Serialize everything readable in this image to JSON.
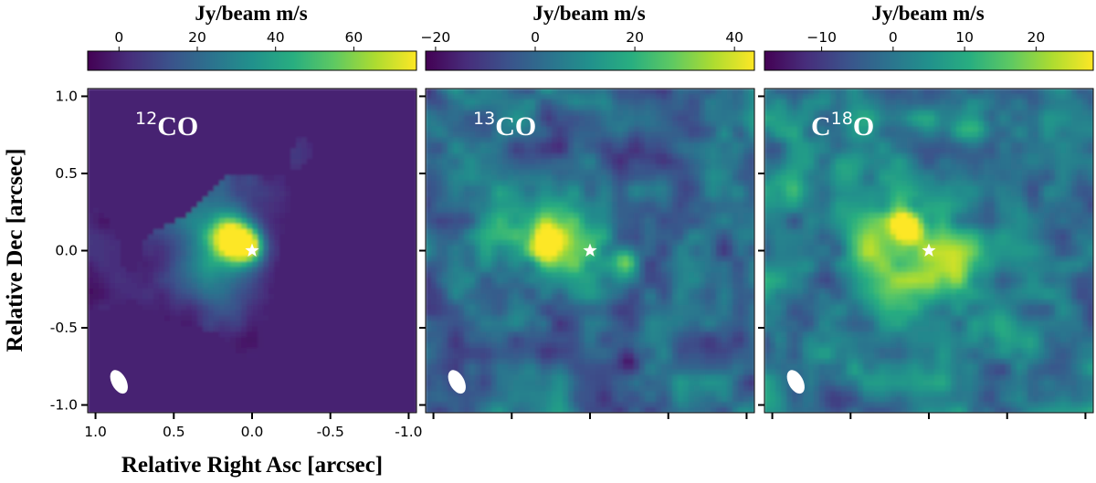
{
  "chart_data": [
    {
      "type": "heatmap",
      "label": "12CO",
      "label_parts": {
        "sup": "12",
        "base": "CO",
        "sup_position": "before"
      },
      "colorbar": {
        "title": "Jy/beam m/s",
        "ticks": [
          0,
          20,
          40,
          60
        ],
        "range": [
          -8,
          76
        ],
        "colormap": "viridis",
        "placement": "top"
      },
      "xlabel": "Relative Right Asc [arcsec]",
      "ylabel": "Relative Dec [arcsec]",
      "xlim": [
        1.05,
        -1.05
      ],
      "ylim": [
        -1.05,
        1.05
      ],
      "xticks": [
        "1.0",
        "0.5",
        "0.0",
        "-0.5",
        "-1.0"
      ],
      "yticks": [
        "1.0",
        "0.5",
        "0.0",
        "-0.5",
        "-1.0"
      ],
      "star_marker": {
        "x": 0.0,
        "y": 0.0
      },
      "beam": {
        "x": 0.85,
        "y": -0.85
      },
      "background_value": 0,
      "features": [
        {
          "x": 0.12,
          "y": 0.08,
          "peak": 72,
          "sigma": 0.09
        },
        {
          "x": 0.02,
          "y": 0.02,
          "peak": 48,
          "sigma": 0.07
        },
        {
          "x": 0.25,
          "y": 0.0,
          "peak": 25,
          "sigma": 0.18
        },
        {
          "x": 0.35,
          "y": 0.35,
          "peak": 15,
          "sigma": 0.25
        },
        {
          "x": 0.2,
          "y": -0.2,
          "peak": 15,
          "sigma": 0.15
        },
        {
          "x": 0.5,
          "y": 0.6,
          "peak": 8,
          "sigma": 0.25
        },
        {
          "x": 0.52,
          "y": 0.35,
          "peak": -7,
          "sigma": 0.06
        }
      ]
    },
    {
      "type": "heatmap",
      "label": "13CO",
      "label_parts": {
        "sup": "13",
        "base": "CO",
        "sup_position": "before"
      },
      "colorbar": {
        "title": "Jy/beam m/s",
        "ticks": [
          -20,
          0,
          20,
          40
        ],
        "range": [
          -22,
          44
        ],
        "colormap": "viridis",
        "placement": "top"
      },
      "xlim": [
        1.05,
        -1.05
      ],
      "ylim": [
        -1.05,
        1.05
      ],
      "star_marker": {
        "x": 0.0,
        "y": 0.0
      },
      "beam": {
        "x": 0.85,
        "y": -0.85
      },
      "background_value": 0,
      "features": [
        {
          "x": 0.28,
          "y": 0.05,
          "peak": 35,
          "sigma": 0.08
        },
        {
          "x": -0.22,
          "y": -0.08,
          "peak": 35,
          "sigma": 0.06
        },
        {
          "x": 0.1,
          "y": 0.05,
          "peak": 22,
          "sigma": 0.2
        },
        {
          "x": 0.55,
          "y": 0.1,
          "peak": 10,
          "sigma": 0.2
        },
        {
          "x": -0.25,
          "y": -0.7,
          "peak": -15,
          "sigma": 0.05
        }
      ]
    },
    {
      "type": "heatmap",
      "label": "C18O",
      "label_parts": {
        "sup": "18",
        "base": "O",
        "prefix": "C",
        "sup_position": "middle"
      },
      "colorbar": {
        "title": "Jy/beam m/s",
        "ticks": [
          -10,
          0,
          10,
          20
        ],
        "range": [
          -18,
          28
        ],
        "colormap": "viridis",
        "placement": "top"
      },
      "xlim": [
        1.05,
        -1.05
      ],
      "ylim": [
        -1.05,
        1.05
      ],
      "star_marker": {
        "x": 0.0,
        "y": 0.0
      },
      "beam": {
        "x": 0.85,
        "y": -0.85
      },
      "background_value": 0,
      "features": [
        {
          "x": 0.14,
          "y": 0.15,
          "peak": 26,
          "sigma": 0.06
        },
        {
          "x": 0.05,
          "y": 0.05,
          "peak": 14,
          "sigma": 0.25
        },
        {
          "x": -0.15,
          "y": -0.15,
          "peak": 12,
          "sigma": 0.1
        },
        {
          "x": 0.3,
          "y": -0.05,
          "peak": 10,
          "sigma": 0.15
        },
        {
          "x": -0.3,
          "y": 0.8,
          "peak": 12,
          "sigma": 0.08
        },
        {
          "x": -0.45,
          "y": -0.5,
          "peak": 10,
          "sigma": 0.1
        },
        {
          "x": 0.55,
          "y": 0.5,
          "peak": 10,
          "sigma": 0.1
        },
        {
          "x": 0.95,
          "y": 0.4,
          "peak": 8,
          "sigma": 0.1
        },
        {
          "x": 0.2,
          "y": -0.35,
          "peak": 9,
          "sigma": 0.12
        },
        {
          "x": 0.6,
          "y": -0.95,
          "peak": -12,
          "sigma": 0.08
        }
      ]
    }
  ]
}
